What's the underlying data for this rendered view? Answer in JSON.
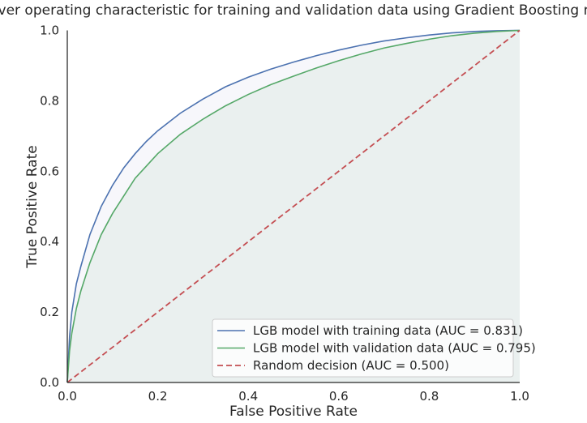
{
  "chart_data": {
    "type": "line",
    "title": "Receiver operating characteristic for training and validation data using Gradient Boosting model",
    "xlabel": "False Positive Rate",
    "ylabel": "True Positive Rate",
    "xlim": [
      0.0,
      1.0
    ],
    "ylim": [
      0.0,
      1.0
    ],
    "xticks": [
      "0.0",
      "0.2",
      "0.4",
      "0.6",
      "0.8",
      "1.0"
    ],
    "yticks": [
      "0.0",
      "0.2",
      "0.4",
      "0.6",
      "0.8",
      "1.0"
    ],
    "grid": false,
    "legend_position": "lower-right",
    "series": [
      {
        "name": "LGB model with training data (AUC = 0.831)",
        "color": "#4c72b0",
        "style": "solid",
        "fill": "#f7f7fb",
        "x": [
          0,
          0.005,
          0.01,
          0.02,
          0.03,
          0.05,
          0.075,
          0.1,
          0.125,
          0.15,
          0.175,
          0.2,
          0.25,
          0.3,
          0.35,
          0.4,
          0.45,
          0.5,
          0.55,
          0.6,
          0.65,
          0.7,
          0.75,
          0.8,
          0.85,
          0.9,
          0.95,
          1.0
        ],
        "y": [
          0,
          0.13,
          0.2,
          0.28,
          0.33,
          0.42,
          0.5,
          0.56,
          0.61,
          0.65,
          0.685,
          0.715,
          0.765,
          0.805,
          0.84,
          0.867,
          0.89,
          0.91,
          0.928,
          0.944,
          0.958,
          0.97,
          0.979,
          0.987,
          0.993,
          0.997,
          0.999,
          1.0
        ]
      },
      {
        "name": "LGB model with validation data (AUC = 0.795)",
        "color": "#55a868",
        "style": "solid",
        "fill": "#eaf0ef",
        "x": [
          0,
          0.005,
          0.01,
          0.02,
          0.03,
          0.05,
          0.075,
          0.1,
          0.125,
          0.15,
          0.175,
          0.2,
          0.25,
          0.3,
          0.35,
          0.4,
          0.45,
          0.5,
          0.55,
          0.6,
          0.65,
          0.7,
          0.75,
          0.8,
          0.85,
          0.9,
          0.95,
          1.0
        ],
        "y": [
          0,
          0.09,
          0.14,
          0.21,
          0.26,
          0.34,
          0.42,
          0.48,
          0.53,
          0.58,
          0.615,
          0.65,
          0.705,
          0.748,
          0.786,
          0.818,
          0.846,
          0.87,
          0.893,
          0.914,
          0.933,
          0.95,
          0.963,
          0.975,
          0.985,
          0.992,
          0.997,
          1.0
        ]
      },
      {
        "name": "Random decision (AUC = 0.500)",
        "color": "#c44e52",
        "style": "dashed",
        "x": [
          0,
          1
        ],
        "y": [
          0,
          1
        ]
      }
    ]
  }
}
